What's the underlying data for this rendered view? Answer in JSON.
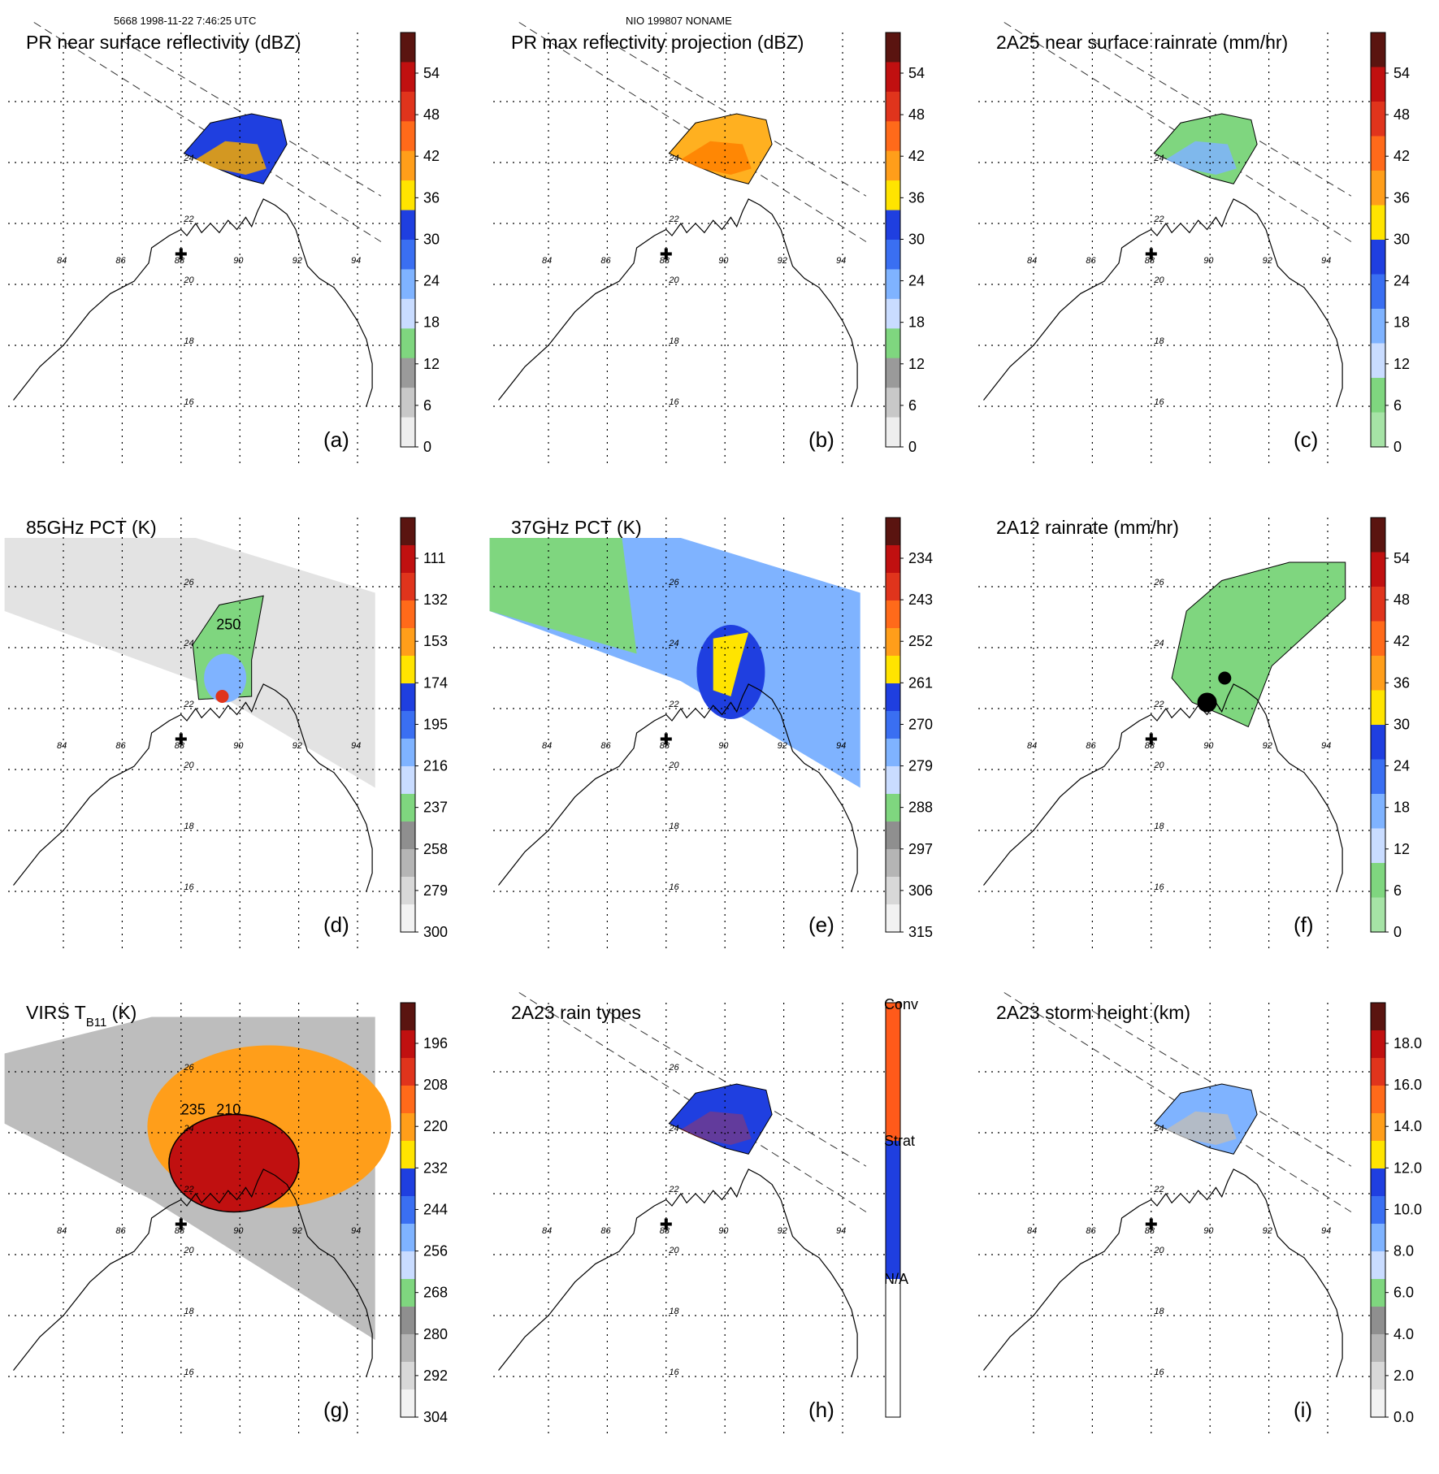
{
  "header": {
    "orbit_time": "5668 1998-11-22 7:46:25 UTC",
    "storm": "NIO 199807 NONAME"
  },
  "map_labels": {
    "lon": [
      "84",
      "86",
      "88",
      "90",
      "92",
      "94"
    ],
    "lat": [
      "26",
      "24",
      "22",
      "20",
      "18",
      "16"
    ]
  },
  "colors": {
    "green": "#7fd67f",
    "blue": "#1f3fe0",
    "lightblue": "#7fb3ff",
    "red": "#e0341c",
    "orange": "#ff8c1a",
    "yellow": "#ffe400",
    "darkred": "#5a1410",
    "gray": "#bcbcbc"
  },
  "panels": [
    {
      "id": "a",
      "title": "PR near surface reflectivity (dBZ)",
      "letter": "(a)",
      "scheme": "dbz",
      "layer": "pr_swath",
      "intensity": "reflectivity",
      "ticks": [
        "54",
        "48",
        "42",
        "36",
        "30",
        "24",
        "18",
        "12",
        "6",
        "0"
      ]
    },
    {
      "id": "b",
      "title": "PR max reflectivity projection (dBZ)",
      "letter": "(b)",
      "scheme": "dbz",
      "layer": "pr_swath",
      "intensity": "maxrefl",
      "ticks": [
        "54",
        "48",
        "42",
        "36",
        "30",
        "24",
        "18",
        "12",
        "6",
        "0"
      ]
    },
    {
      "id": "c",
      "title": "2A25 near surface rainrate (mm/hr)",
      "letter": "(c)",
      "scheme": "rain",
      "layer": "pr_swath",
      "intensity": "rain",
      "ticks": [
        "54",
        "48",
        "42",
        "36",
        "30",
        "24",
        "18",
        "12",
        "6",
        "0"
      ]
    },
    {
      "id": "d",
      "title": "85GHz PCT (K)",
      "letter": "(d)",
      "scheme": "pct85",
      "layer": "tmi_swath",
      "intensity": "pct85",
      "contour_label": "250",
      "ticks": [
        "111",
        "132",
        "153",
        "174",
        "195",
        "216",
        "237",
        "258",
        "279",
        "300"
      ]
    },
    {
      "id": "e",
      "title": "37GHz PCT (K)",
      "letter": "(e)",
      "scheme": "pct37",
      "layer": "tmi_swath",
      "intensity": "pct37",
      "ticks": [
        "234",
        "243",
        "252",
        "261",
        "270",
        "279",
        "288",
        "297",
        "306",
        "315"
      ]
    },
    {
      "id": "f",
      "title": "2A12 rainrate (mm/hr)",
      "letter": "(f)",
      "scheme": "rain",
      "layer": "tmi_swath",
      "intensity": "rain2a12",
      "ticks": [
        "54",
        "48",
        "42",
        "36",
        "30",
        "24",
        "18",
        "12",
        "6",
        "0"
      ]
    },
    {
      "id": "g",
      "title": "VIRS T",
      "title_sub": "B11",
      "title_tail": " (K)",
      "letter": "(g)",
      "scheme": "virs",
      "layer": "virs_swath",
      "intensity": "virs",
      "contour_label": "210",
      "contour_label_2": "235",
      "ticks": [
        "196",
        "208",
        "220",
        "232",
        "244",
        "256",
        "268",
        "280",
        "292",
        "304"
      ]
    },
    {
      "id": "h",
      "title": "2A23 rain types",
      "letter": "(h)",
      "scheme": "types",
      "layer": "pr_swath",
      "intensity": "types",
      "ticks": [
        "Conv",
        "Strat",
        "N/A"
      ]
    },
    {
      "id": "i",
      "title": "2A23 storm height (km)",
      "letter": "(i)",
      "scheme": "height",
      "layer": "pr_swath",
      "intensity": "height",
      "ticks": [
        "18.0",
        "16.0",
        "14.0",
        "12.0",
        "10.0",
        "8.0",
        "6.0",
        "4.0",
        "2.0",
        "0.0"
      ]
    }
  ]
}
